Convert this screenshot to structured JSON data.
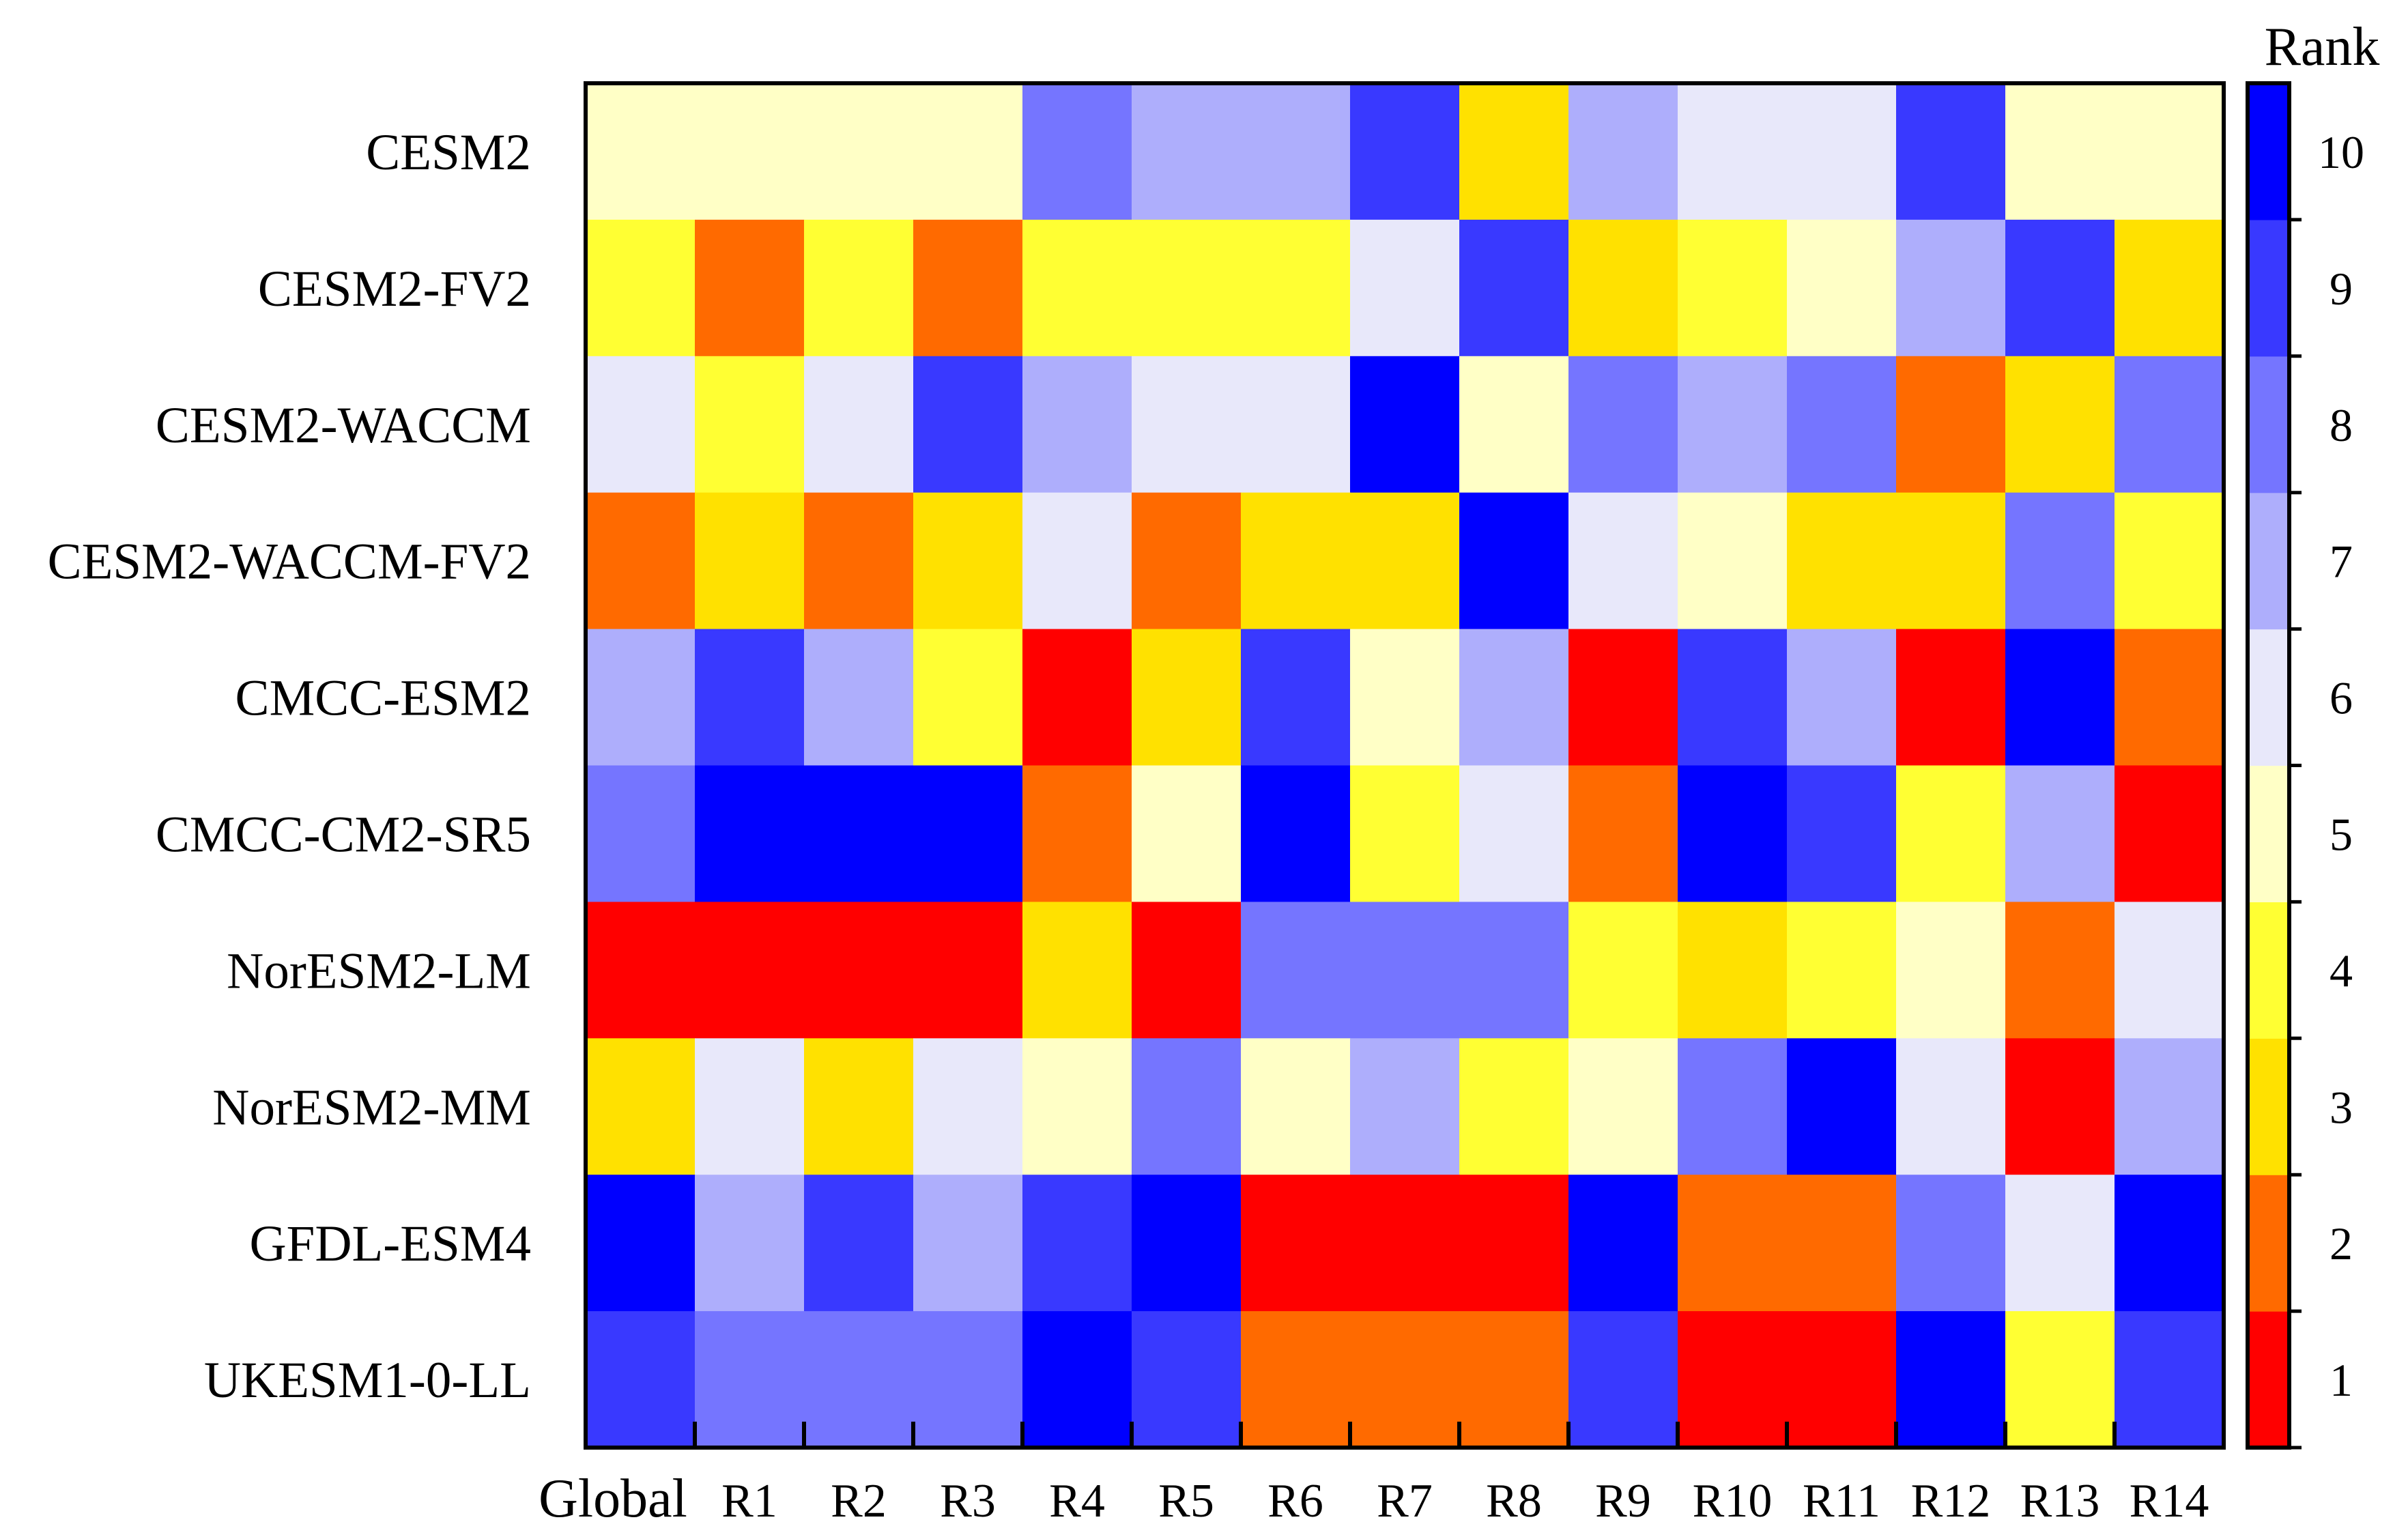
{
  "chart_data": {
    "type": "heatmap",
    "title": "",
    "xlabel": "",
    "ylabel": "",
    "columns": [
      "Global",
      "R1",
      "R2",
      "R3",
      "R4",
      "R5",
      "R6",
      "R7",
      "R8",
      "R9",
      "R10",
      "R11",
      "R12",
      "R13",
      "R14"
    ],
    "rows": [
      "CESM2",
      "CESM2-FV2",
      "CESM2-WACCM",
      "CESM2-WACCM-FV2",
      "CMCC-ESM2",
      "CMCC-CM2-SR5",
      "NorESM2-LM",
      "NorESM2-MM",
      "GFDL-ESM4",
      "UKESM1-0-LL"
    ],
    "values": [
      [
        5,
        5,
        5,
        5,
        8,
        7,
        7,
        9,
        3,
        7,
        6,
        6,
        9,
        5,
        5
      ],
      [
        4,
        2,
        4,
        2,
        4,
        4,
        4,
        6,
        9,
        3,
        4,
        5,
        7,
        9,
        3
      ],
      [
        6,
        4,
        6,
        9,
        7,
        6,
        6,
        10,
        5,
        8,
        7,
        8,
        2,
        3,
        8
      ],
      [
        2,
        3,
        2,
        3,
        6,
        2,
        3,
        3,
        10,
        6,
        5,
        3,
        3,
        8,
        4
      ],
      [
        7,
        9,
        7,
        4,
        1,
        3,
        9,
        5,
        7,
        1,
        9,
        7,
        1,
        10,
        2
      ],
      [
        8,
        10,
        10,
        10,
        2,
        5,
        10,
        4,
        6,
        2,
        10,
        9,
        4,
        7,
        1
      ],
      [
        1,
        1,
        1,
        1,
        3,
        1,
        8,
        8,
        8,
        4,
        3,
        4,
        5,
        2,
        6
      ],
      [
        3,
        6,
        3,
        6,
        5,
        8,
        5,
        7,
        4,
        5,
        8,
        10,
        6,
        1,
        7
      ],
      [
        10,
        7,
        9,
        7,
        9,
        10,
        1,
        1,
        1,
        10,
        2,
        2,
        8,
        6,
        10
      ],
      [
        9,
        8,
        8,
        8,
        10,
        9,
        2,
        2,
        2,
        9,
        1,
        1,
        10,
        4,
        9
      ]
    ],
    "colorbar": {
      "title": "Rank",
      "ticks": [
        1,
        2,
        3,
        4,
        5,
        6,
        7,
        8,
        9,
        10
      ],
      "colors": {
        "1": "#ff0000",
        "2": "#ff6a00",
        "3": "#ffe100",
        "4": "#ffff33",
        "5": "#ffffc6",
        "6": "#e8e8fa",
        "7": "#aeaefc",
        "8": "#7575ff",
        "9": "#3939ff",
        "10": "#0000ff"
      }
    }
  }
}
